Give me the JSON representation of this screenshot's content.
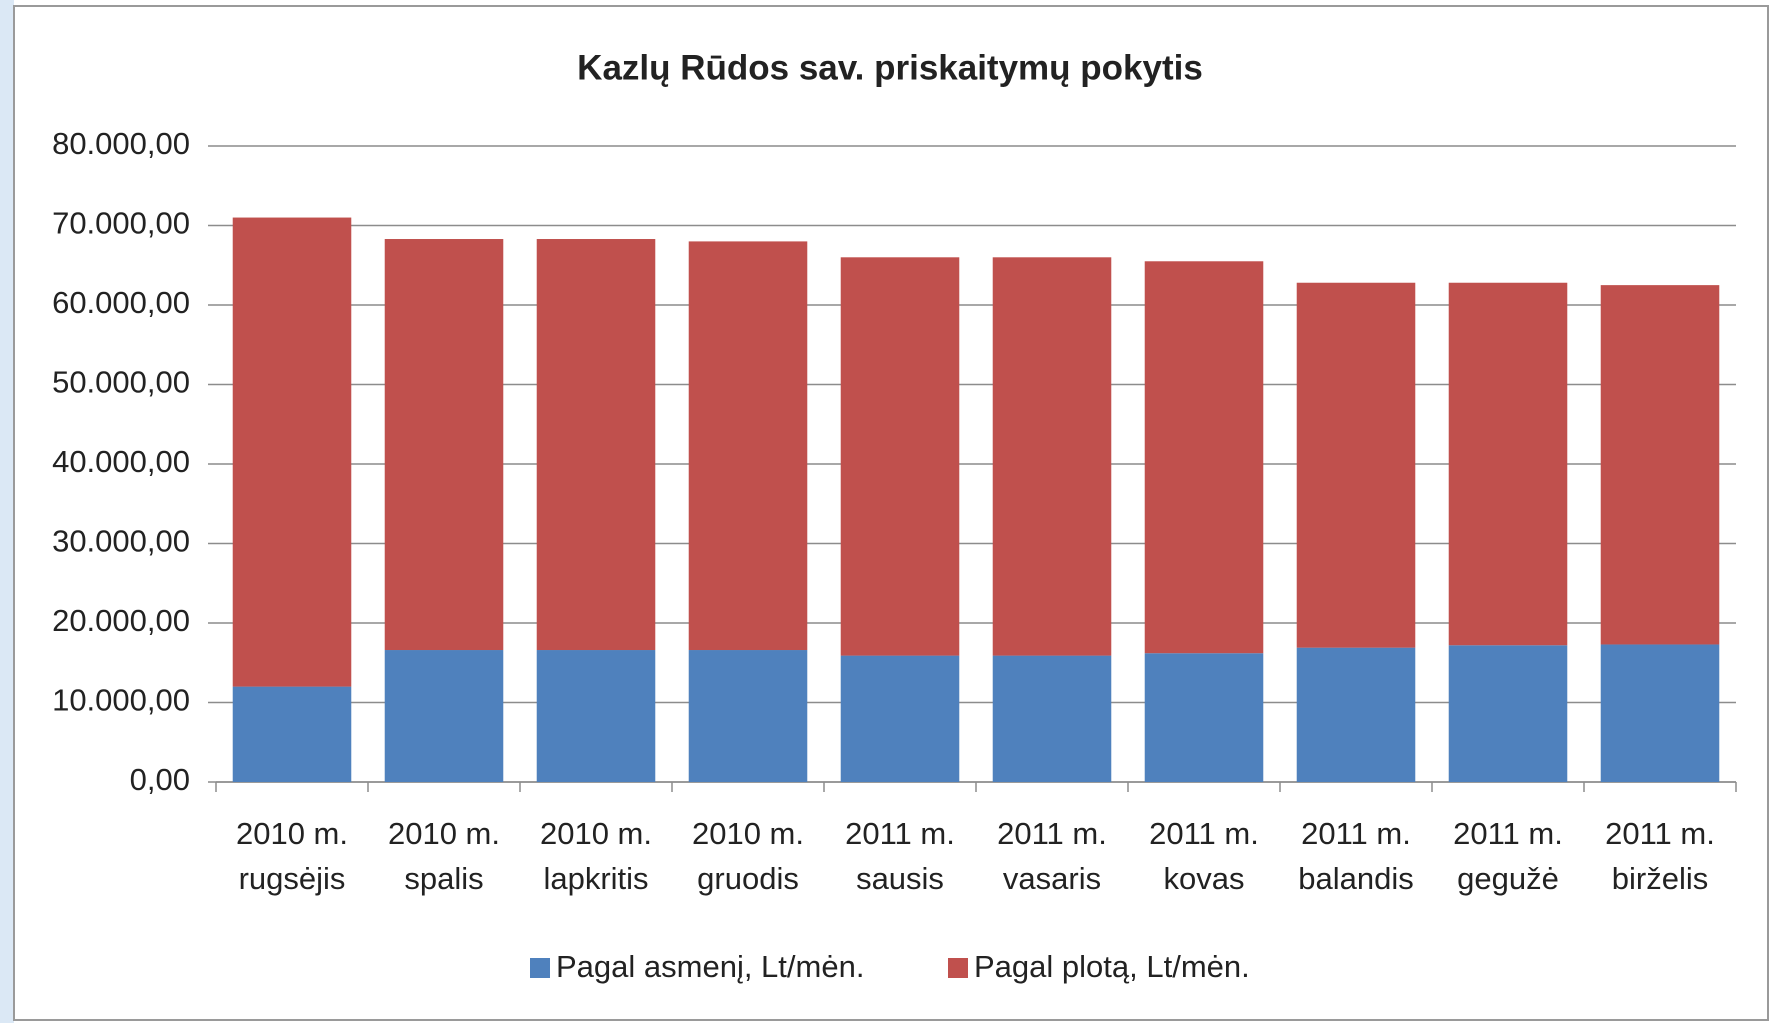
{
  "chart_data": {
    "type": "stacked_bar",
    "title": "Kazlų Rūdos sav.  priskaitymų pokytis",
    "categories": [
      [
        "2010 m.",
        "rugsėjis"
      ],
      [
        "2010 m.",
        "spalis"
      ],
      [
        "2010 m.",
        "lapkritis"
      ],
      [
        "2010 m.",
        "gruodis"
      ],
      [
        "2011 m.",
        "sausis"
      ],
      [
        "2011 m.",
        "vasaris"
      ],
      [
        "2011 m.",
        "kovas"
      ],
      [
        "2011 m.",
        "balandis"
      ],
      [
        "2011 m.",
        "gegužė"
      ],
      [
        "2011 m.",
        "birželis"
      ]
    ],
    "series": [
      {
        "name": "Pagal asmenį, Lt/mėn.",
        "color": "#4f81bd",
        "values": [
          12000,
          16600,
          16600,
          16600,
          15900,
          15900,
          16200,
          16900,
          17200,
          17300
        ]
      },
      {
        "name": "Pagal plotą, Lt/mėn.",
        "color": "#c0504d",
        "values": [
          59000,
          51700,
          51700,
          51400,
          50100,
          50100,
          49300,
          45900,
          45600,
          45200
        ]
      }
    ],
    "ylim": [
      0,
      80000
    ],
    "yticks": [
      {
        "value": 0,
        "label": "0,00"
      },
      {
        "value": 10000,
        "label": "10.000,00"
      },
      {
        "value": 20000,
        "label": "20.000,00"
      },
      {
        "value": 30000,
        "label": "30.000,00"
      },
      {
        "value": 40000,
        "label": "40.000,00"
      },
      {
        "value": 50000,
        "label": "50.000,00"
      },
      {
        "value": 60000,
        "label": "60.000,00"
      },
      {
        "value": 70000,
        "label": "70.000,00"
      },
      {
        "value": 80000,
        "label": "80.000,00"
      }
    ],
    "grid": true,
    "legend": "bottom"
  }
}
